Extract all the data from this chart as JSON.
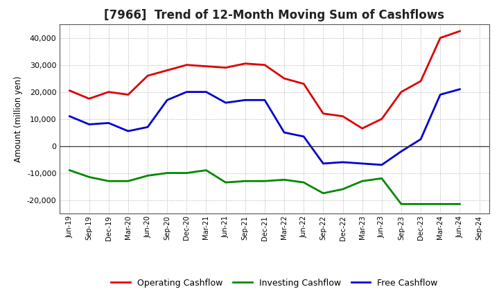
{
  "title": "[7966]  Trend of 12-Month Moving Sum of Cashflows",
  "ylabel": "Amount (million yen)",
  "background_color": "#ffffff",
  "grid_color": "#aaaaaa",
  "x_labels": [
    "Jun-19",
    "Sep-19",
    "Dec-19",
    "Mar-20",
    "Jun-20",
    "Sep-20",
    "Dec-20",
    "Mar-21",
    "Jun-21",
    "Sep-21",
    "Dec-21",
    "Mar-22",
    "Jun-22",
    "Sep-22",
    "Dec-22",
    "Mar-23",
    "Jun-23",
    "Sep-23",
    "Dec-23",
    "Mar-24",
    "Jun-24",
    "Sep-24"
  ],
  "operating": [
    20500,
    17500,
    20000,
    19000,
    26000,
    28000,
    30000,
    29500,
    29000,
    30500,
    30000,
    25000,
    23000,
    12000,
    11000,
    6500,
    10000,
    20000,
    24000,
    40000,
    42500,
    null
  ],
  "investing": [
    -9000,
    -11500,
    -13000,
    -13000,
    -11000,
    -10000,
    -10000,
    -9000,
    -13500,
    -13000,
    -13000,
    -12500,
    -13500,
    -17500,
    -16000,
    -13000,
    -12000,
    -21500,
    -21500,
    -21500,
    -21500,
    null
  ],
  "free": [
    11000,
    8000,
    8500,
    5500,
    7000,
    17000,
    20000,
    20000,
    16000,
    17000,
    17000,
    5000,
    3500,
    -6500,
    -6000,
    -6500,
    -7000,
    -2000,
    2500,
    19000,
    21000,
    null
  ],
  "ylim": [
    -25000,
    45000
  ],
  "yticks": [
    -20000,
    -10000,
    0,
    10000,
    20000,
    30000,
    40000
  ],
  "line_colors": {
    "operating": "#dd0000",
    "investing": "#008800",
    "free": "#0000cc"
  },
  "line_width": 2.0,
  "legend_labels": [
    "Operating Cashflow",
    "Investing Cashflow",
    "Free Cashflow"
  ]
}
